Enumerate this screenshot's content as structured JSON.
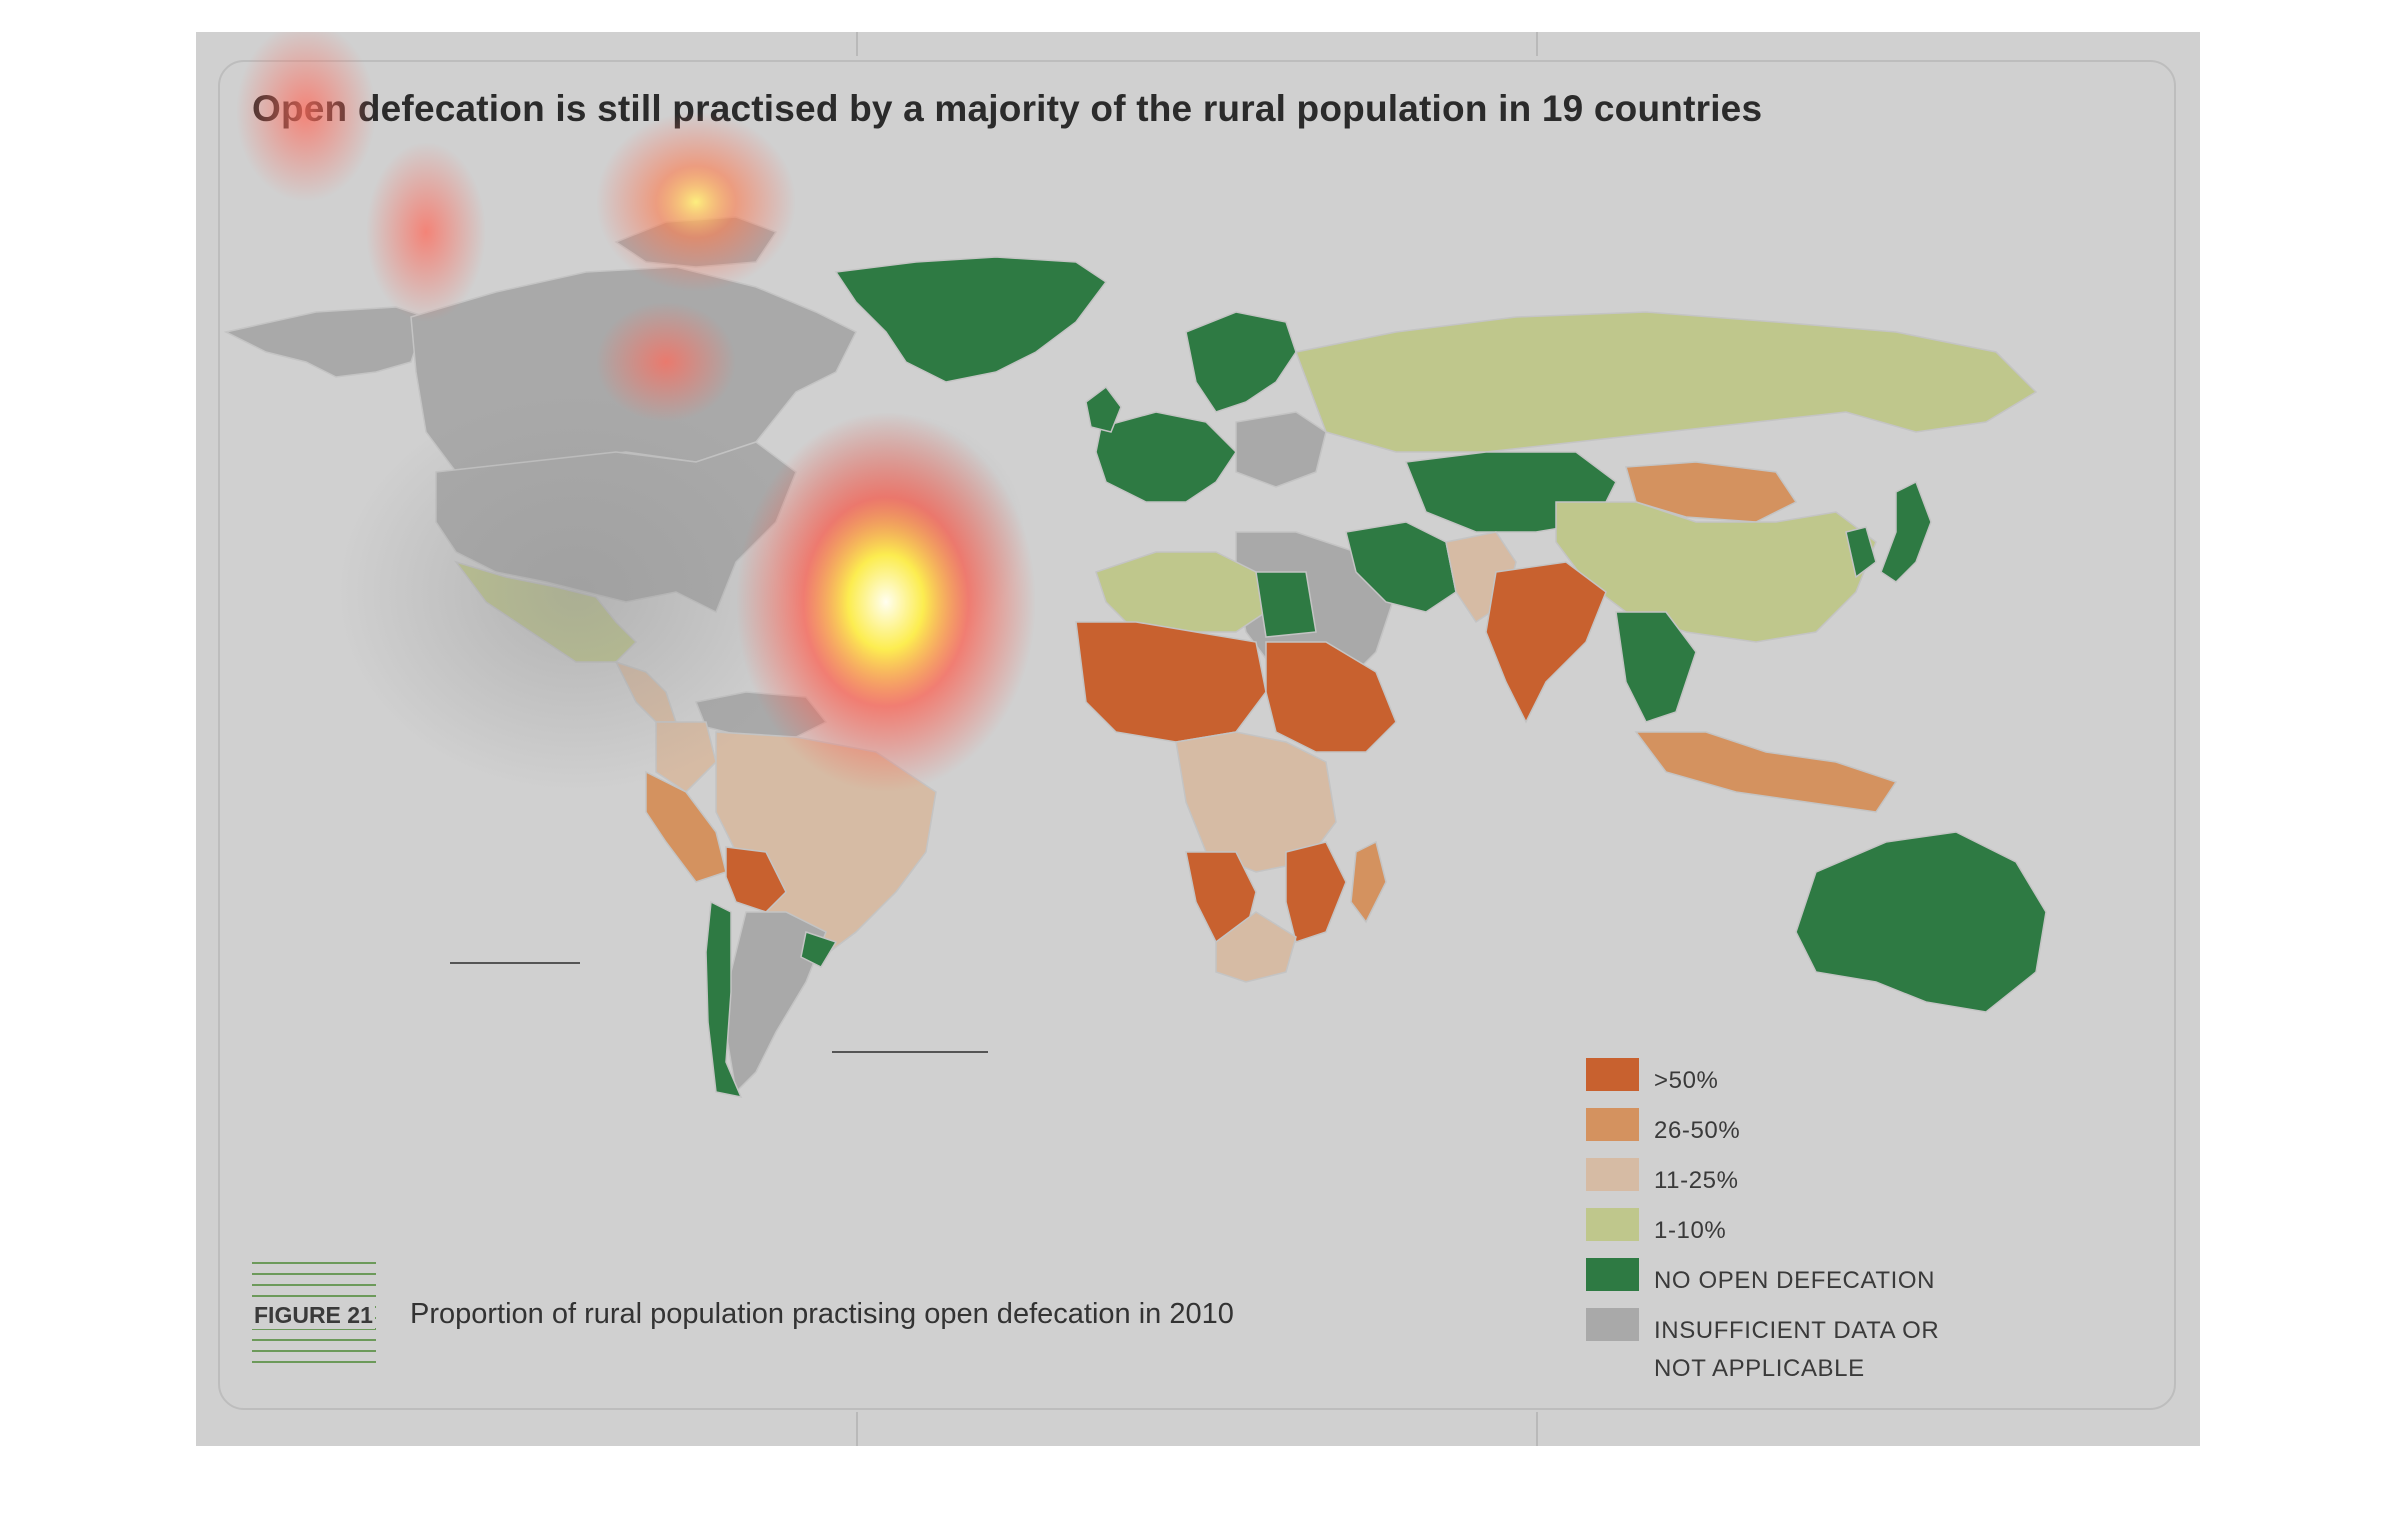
{
  "title": "Open defecation is still practised by a majority of the rural population in 19 countries",
  "figure": {
    "label": "FIGURE 21",
    "caption": "Proportion of rural population practising open defecation in 2010"
  },
  "legend": [
    {
      "label": ">50%",
      "color": "#c8612f"
    },
    {
      "label": "26-50%",
      "color": "#d4925f"
    },
    {
      "label": "11-25%",
      "color": "#d6bba4"
    },
    {
      "label": "1-10%",
      "color": "#bfc78c"
    },
    {
      "label": "NO OPEN DEFECATION",
      "color": "#2e7a43"
    },
    {
      "label": "INSUFFICIENT DATA OR\nNOT APPLICABLE",
      "color": "#a9a9a9"
    }
  ],
  "colors": {
    "background": "#d0d0d0",
    "over_50": "#c8612f",
    "from_26_to_50": "#d4925f",
    "from_11_to_25": "#d6bba4",
    "from_1_to_10": "#bfc78c",
    "none": "#2e7a43",
    "insufficient": "#a9a9a9"
  },
  "regions": [
    {
      "name": "alaska",
      "category": "insufficient"
    },
    {
      "name": "canada",
      "category": "insufficient"
    },
    {
      "name": "usa",
      "category": "insufficient"
    },
    {
      "name": "greenland",
      "category": "none"
    },
    {
      "name": "mexico",
      "category": "from_1_to_10"
    },
    {
      "name": "central-america",
      "category": "from_11_to_25"
    },
    {
      "name": "venezuela-guianas",
      "category": "insufficient"
    },
    {
      "name": "colombia",
      "category": "from_11_to_25"
    },
    {
      "name": "peru",
      "category": "from_26_to_50"
    },
    {
      "name": "brazil",
      "category": "from_11_to_25"
    },
    {
      "name": "bolivia",
      "category": "over_50"
    },
    {
      "name": "chile",
      "category": "none"
    },
    {
      "name": "argentina",
      "category": "insufficient"
    },
    {
      "name": "uruguay",
      "category": "none"
    },
    {
      "name": "western-europe",
      "category": "none"
    },
    {
      "name": "scandinavia",
      "category": "none"
    },
    {
      "name": "eastern-europe",
      "category": "insufficient"
    },
    {
      "name": "russia",
      "category": "from_1_to_10"
    },
    {
      "name": "kazakhstan-central-asia",
      "category": "none"
    },
    {
      "name": "mongolia",
      "category": "from_26_to_50"
    },
    {
      "name": "china",
      "category": "from_1_to_10"
    },
    {
      "name": "japan",
      "category": "none"
    },
    {
      "name": "korea",
      "category": "none"
    },
    {
      "name": "middle-east",
      "category": "insufficient"
    },
    {
      "name": "iran",
      "category": "none"
    },
    {
      "name": "afghanistan-pakistan",
      "category": "from_11_to_25"
    },
    {
      "name": "india",
      "category": "over_50"
    },
    {
      "name": "southeast-asia",
      "category": "none"
    },
    {
      "name": "indonesia",
      "category": "from_26_to_50"
    },
    {
      "name": "australia",
      "category": "none"
    },
    {
      "name": "north-africa",
      "category": "from_1_to_10"
    },
    {
      "name": "egypt",
      "category": "none"
    },
    {
      "name": "sahel-west-africa",
      "category": "over_50"
    },
    {
      "name": "sudan-ethiopia",
      "category": "over_50"
    },
    {
      "name": "central-africa",
      "category": "from_11_to_25"
    },
    {
      "name": "angola-namibia",
      "category": "over_50"
    },
    {
      "name": "mozambique",
      "category": "over_50"
    },
    {
      "name": "south-africa",
      "category": "from_11_to_25"
    },
    {
      "name": "madagascar",
      "category": "from_26_to_50"
    }
  ]
}
